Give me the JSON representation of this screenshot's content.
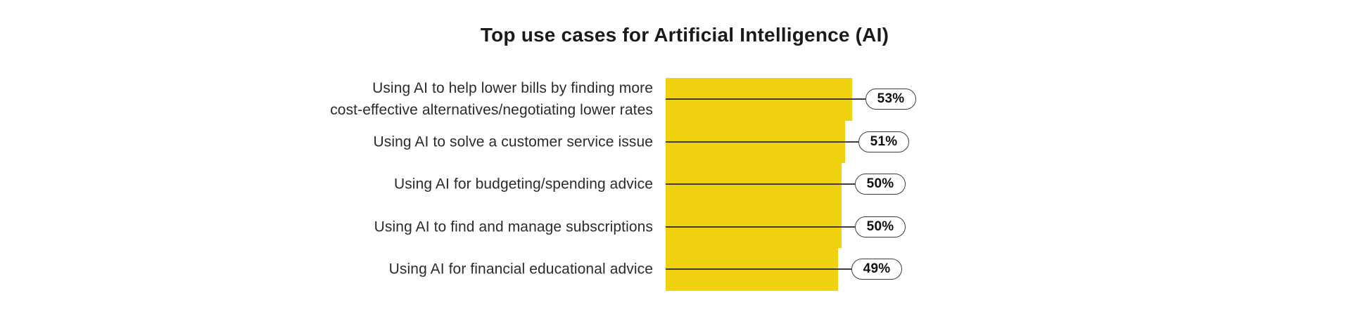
{
  "chart_data": {
    "type": "bar",
    "orientation": "horizontal",
    "title": "Top use cases for Artificial Intelligence (AI)",
    "categories": [
      "Using AI to help lower bills by finding more\ncost-effective alternatives/negotiating lower rates",
      "Using AI to solve a customer service issue",
      "Using AI for budgeting/spending advice",
      "Using AI to find and manage subscriptions",
      "Using AI for financial educational advice"
    ],
    "values": [
      53,
      51,
      50,
      50,
      49
    ],
    "value_labels": [
      "53%",
      "51%",
      "50%",
      "50%",
      "49%"
    ],
    "unit": "%",
    "xlabel": "",
    "ylabel": "",
    "xlim": [
      0,
      53
    ],
    "grid": false,
    "legend": "none",
    "annotation_style": "callout-pills"
  },
  "colors": {
    "bar_fill": "#F1D211",
    "leader_line": "#3d3d3d",
    "pill_border": "#3d3d3d",
    "pill_background": "#ffffff",
    "pill_text": "#0f0f0f",
    "label_text": "#2b2b2b",
    "title_text": "#1a1a1a",
    "background": "#ffffff"
  }
}
